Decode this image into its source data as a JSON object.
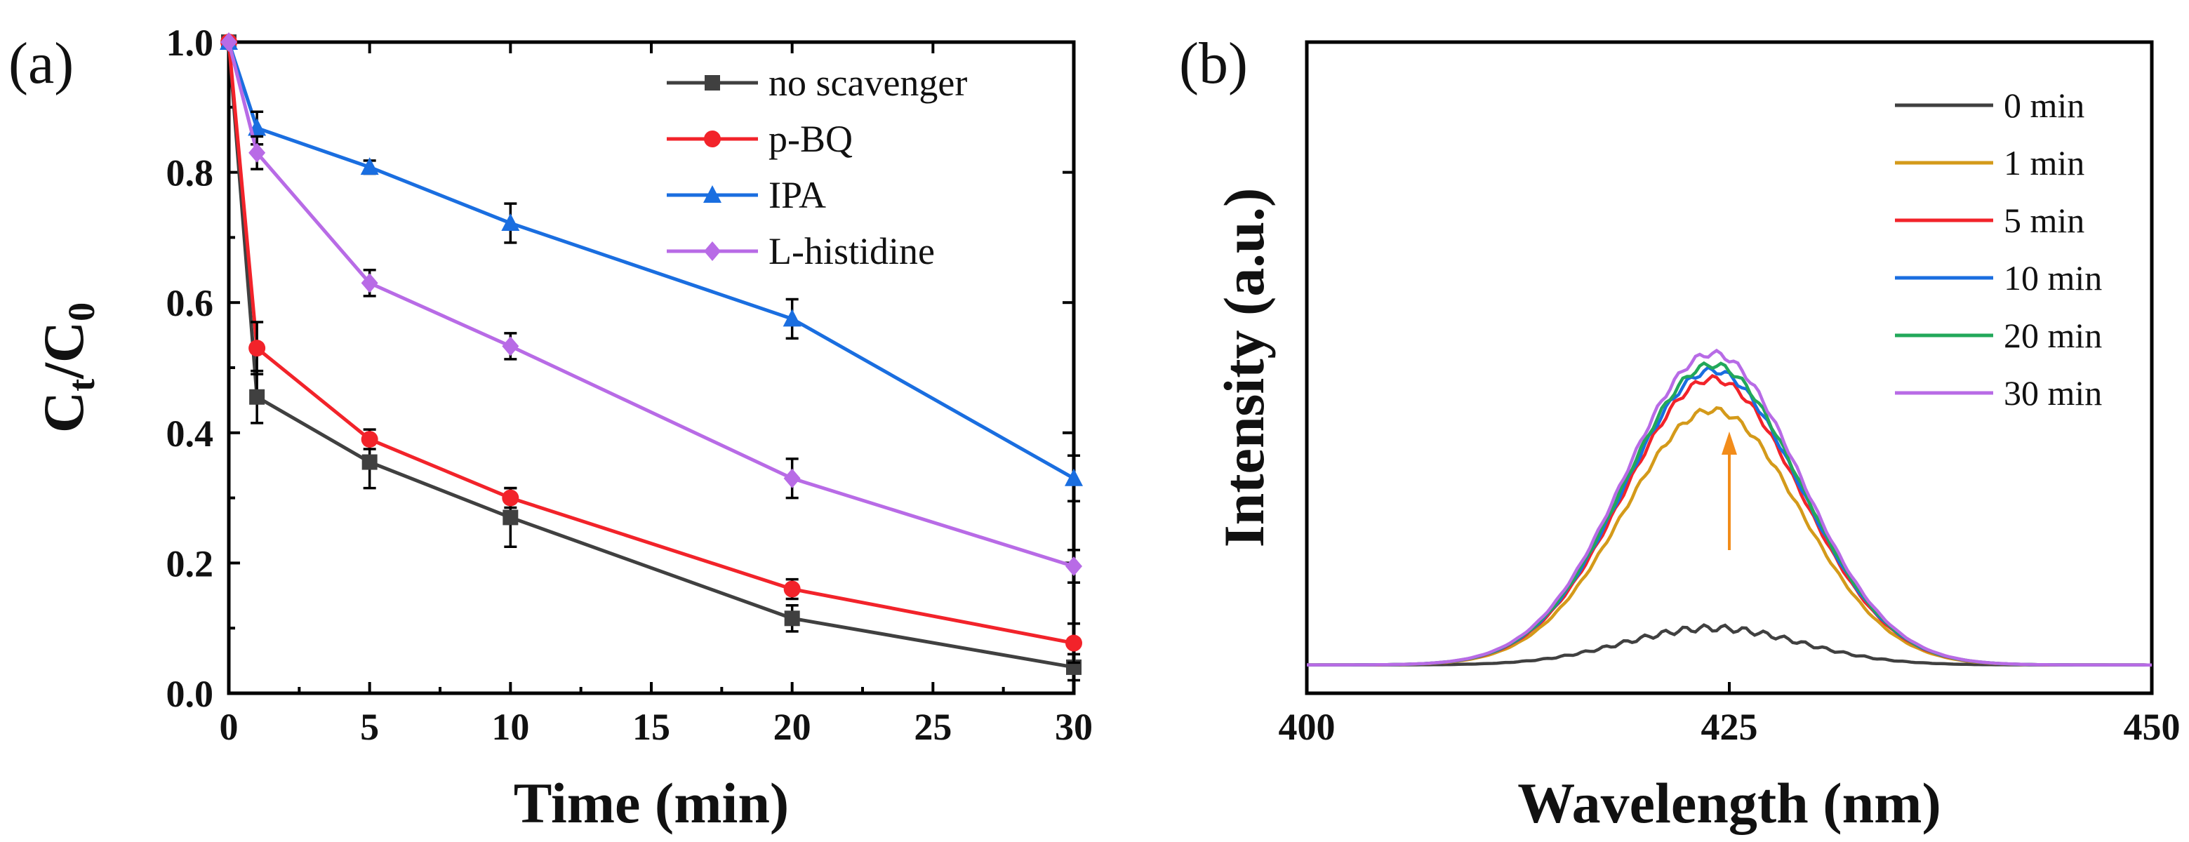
{
  "chart_data": [
    {
      "panel": "(a)",
      "type": "line",
      "xlabel": "Time (min)",
      "ylabel": {
        "main": "C",
        "sub1": "t",
        "slash": "/",
        "main2": "C",
        "sub2": "0"
      },
      "xlim": [
        0,
        30
      ],
      "ylim": [
        0.0,
        1.0
      ],
      "xticks": [
        "0",
        "5",
        "10",
        "15",
        "20",
        "25",
        "30"
      ],
      "yticks": [
        "0.0",
        "0.2",
        "0.4",
        "0.6",
        "0.8",
        "1.0"
      ],
      "xtick_values": [
        0,
        5,
        10,
        15,
        20,
        25,
        30
      ],
      "ytick_values": [
        0.0,
        0.2,
        0.4,
        0.6,
        0.8,
        1.0
      ],
      "x": [
        0,
        1,
        5,
        10,
        20,
        30
      ],
      "legend_position": "top-right",
      "series": [
        {
          "name": "no scavenger",
          "color": "#404040",
          "marker": "square",
          "values": [
            1.0,
            0.455,
            0.355,
            0.27,
            0.115,
            0.04
          ],
          "errors": [
            0.0,
            0.04,
            0.04,
            0.045,
            0.02,
            0.02
          ]
        },
        {
          "name": "p-BQ",
          "color": "#f2232a",
          "marker": "circle",
          "values": [
            1.0,
            0.53,
            0.39,
            0.3,
            0.16,
            0.077
          ],
          "errors": [
            0.0,
            0.04,
            0.015,
            0.015,
            0.015,
            0.03
          ]
        },
        {
          "name": "IPA",
          "color": "#1a6ee0",
          "marker": "triangle",
          "values": [
            1.0,
            0.868,
            0.808,
            0.722,
            0.575,
            0.33
          ],
          "errors": [
            0.0,
            0.025,
            0.01,
            0.03,
            0.03,
            0.035
          ]
        },
        {
          "name": "L-histidine",
          "color": "#b86be6",
          "marker": "diamond",
          "values": [
            1.0,
            0.83,
            0.63,
            0.533,
            0.33,
            0.195
          ],
          "errors": [
            0.0,
            0.025,
            0.02,
            0.02,
            0.03,
            0.025
          ]
        }
      ]
    },
    {
      "panel": "(b)",
      "type": "line",
      "xlabel": "Wavelength (nm)",
      "ylabel": "Intensity (a.u.)",
      "xlim": [
        400,
        450
      ],
      "xticks": [
        "400",
        "425",
        "450"
      ],
      "xtick_values": [
        400,
        425,
        450
      ],
      "legend_position": "top-right",
      "annotation": "upward arrow at 425 nm indicating increasing intensity with time",
      "peak_center": 424,
      "peak_width": 5.2,
      "baseline": 1.0,
      "ylim": [
        0.0,
        23.0
      ],
      "series": [
        {
          "name": "0 min",
          "color": "#404040",
          "peak_height": 1.3
        },
        {
          "name": "1 min",
          "color": "#d49a1a",
          "peak_height": 9.0
        },
        {
          "name": "5 min",
          "color": "#f2232a",
          "peak_height": 10.1
        },
        {
          "name": "10 min",
          "color": "#1a6ee0",
          "peak_height": 10.4
        },
        {
          "name": "20 min",
          "color": "#22a85a",
          "peak_height": 10.6
        },
        {
          "name": "30 min",
          "color": "#b86be6",
          "peak_height": 11.0
        }
      ],
      "arrow_color": "#f28c1a"
    }
  ]
}
